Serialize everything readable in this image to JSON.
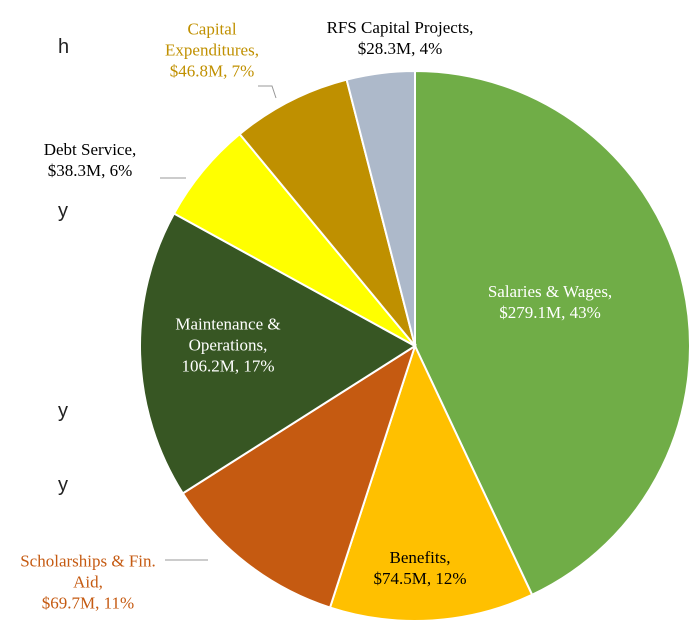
{
  "chart_data": {
    "type": "pie",
    "categories": [
      "Salaries & Wages,",
      "Benefits,",
      "Scholarships & Fin. Aid,",
      "Maintenance & Operations,",
      "Debt Service,",
      "Capital Expenditures,",
      "RFS Capital Projects,"
    ],
    "values": [
      43,
      12,
      11,
      17,
      6,
      7,
      4
    ],
    "value_labels": [
      "$279.1M, 43%",
      "$74.5M, 12%",
      "$69.7M, 11%",
      "106.2M, 17%",
      "$38.3M, 6%",
      "$46.8M, 7%",
      "$28.3M, 4%"
    ],
    "colors": [
      "#70ad47",
      "#ffc000",
      "#c55a11",
      "#375623",
      "#ffff00",
      "#bf9000",
      "#adb9ca"
    ]
  },
  "side_text": [
    "h",
    "y",
    "y",
    "y"
  ]
}
